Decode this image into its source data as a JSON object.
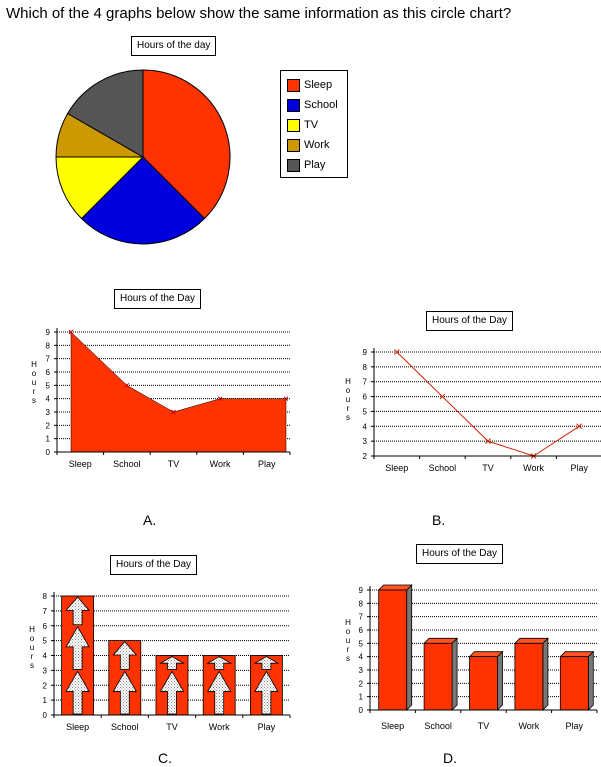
{
  "question": "Which of the 4 graphs below show the same information as this circle chart?",
  "chart_data": [
    {
      "id": "pie",
      "type": "pie",
      "title": "Hours of the day",
      "categories": [
        "Sleep",
        "School",
        "TV",
        "Work",
        "Play"
      ],
      "values": [
        9,
        6,
        3,
        2,
        4
      ],
      "colors": [
        "#FF3300",
        "#0000DD",
        "#FFFF00",
        "#CC9900",
        "#555555"
      ],
      "legend_position": "right"
    },
    {
      "id": "A",
      "type": "area",
      "option_label": "A.",
      "title": "Hours of the Day",
      "ylabel": "Hours",
      "categories": [
        "Sleep",
        "School",
        "TV",
        "Work",
        "Play"
      ],
      "values": [
        9,
        5,
        3,
        4,
        4
      ],
      "ylim": [
        0,
        9
      ],
      "yticks": [
        "0",
        "1",
        "2",
        "3",
        "4",
        "5",
        "6",
        "7",
        "8",
        "9"
      ],
      "grid": true,
      "color": "#FF3300"
    },
    {
      "id": "B",
      "type": "line",
      "option_label": "B.",
      "title": "Hours of the Day",
      "ylabel": "Hours",
      "categories": [
        "Sleep",
        "School",
        "TV",
        "Work",
        "Play"
      ],
      "values": [
        9,
        6,
        3,
        2,
        4
      ],
      "ylim": [
        2,
        9
      ],
      "yticks": [
        "2",
        "3",
        "4",
        "5",
        "6",
        "7",
        "8",
        "9"
      ],
      "grid": true,
      "color": "#CC2200"
    },
    {
      "id": "C",
      "type": "bar",
      "option_label": "C.",
      "title": "Hours of the Day",
      "ylabel": "Hours",
      "categories": [
        "Sleep",
        "School",
        "TV",
        "Work",
        "Play"
      ],
      "values": [
        8,
        5,
        4,
        4,
        4
      ],
      "ylim": [
        0,
        8
      ],
      "yticks": [
        "0",
        "1",
        "2",
        "3",
        "4",
        "5",
        "6",
        "7",
        "8"
      ],
      "grid": true,
      "color": "#FF3300"
    },
    {
      "id": "D",
      "type": "bar",
      "option_label": "D.",
      "title": "Hours of the Day",
      "ylabel": "Hours",
      "categories": [
        "Sleep",
        "School",
        "TV",
        "Work",
        "Play"
      ],
      "values": [
        9,
        5,
        4,
        5,
        4
      ],
      "ylim": [
        0,
        9
      ],
      "yticks": [
        "0",
        "1",
        "2",
        "3",
        "4",
        "5",
        "6",
        "7",
        "8",
        "9"
      ],
      "grid": true,
      "color": "#FF3300"
    }
  ]
}
